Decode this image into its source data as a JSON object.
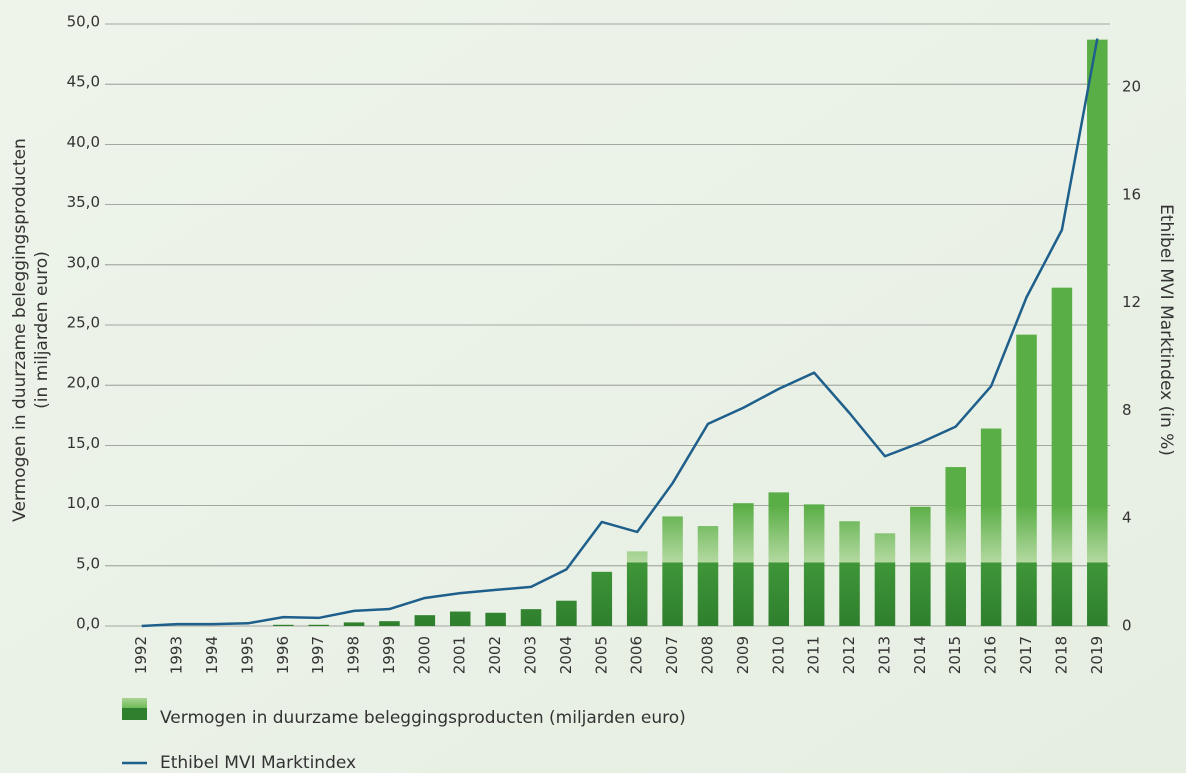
{
  "chart_data": {
    "type": "bar",
    "y_label": [
      "Vermogen in duurzame beleggingsproducten",
      "(in miljarden euro)"
    ],
    "y2_label": "Ethibel MVI Marktindex (in %)",
    "categories": [
      "1992",
      "1993",
      "1994",
      "1995",
      "1996",
      "1997",
      "1998",
      "1999",
      "2000",
      "2001",
      "2002",
      "2003",
      "2004",
      "2005",
      "2006",
      "2007",
      "2008",
      "2009",
      "2010",
      "2011",
      "2012",
      "2013",
      "2014",
      "2015",
      "2016",
      "2017",
      "2018",
      "2019"
    ],
    "series": [
      {
        "name": "Vermogen in duurzame beleggingsproducten (miljarden euro)",
        "type": "bar",
        "color": "#5aae46",
        "values": [
          0,
          0,
          0,
          0,
          0.1,
          0.1,
          0.3,
          0.4,
          0.9,
          1.2,
          1.1,
          1.4,
          2.1,
          4.5,
          6.2,
          9.1,
          8.3,
          10.2,
          11.1,
          10.1,
          8.7,
          7.7,
          9.9,
          13.2,
          16.4,
          24.2,
          28.1,
          48.7
        ]
      },
      {
        "name": "Ethibel MVI Marktindex",
        "type": "line",
        "axis": "y2",
        "color": "#1f5f8b",
        "values": [
          0,
          0.07,
          0.07,
          0.1,
          0.33,
          0.3,
          0.56,
          0.63,
          1.04,
          1.22,
          1.34,
          1.45,
          2.1,
          3.86,
          3.49,
          5.3,
          7.5,
          8.1,
          8.8,
          9.4,
          7.9,
          6.3,
          6.8,
          7.4,
          8.9,
          12.2,
          14.7,
          21.8
        ]
      }
    ],
    "ylim": [
      0,
      50
    ],
    "yticks": [
      {
        "value": 0,
        "label": "0,0"
      },
      {
        "value": 5,
        "label": "5,0"
      },
      {
        "value": 10,
        "label": "10,0"
      },
      {
        "value": 15,
        "label": "15,0"
      },
      {
        "value": 20,
        "label": "20,0"
      },
      {
        "value": 25,
        "label": "25,0"
      },
      {
        "value": 30,
        "label": "30,0"
      },
      {
        "value": 35,
        "label": "35,0"
      },
      {
        "value": 40,
        "label": "40,0"
      },
      {
        "value": 45,
        "label": "45,0"
      },
      {
        "value": 50,
        "label": "50,0"
      }
    ],
    "y2lim": [
      0,
      22.34
    ],
    "y2ticks": [
      0,
      4,
      8,
      12,
      16,
      20
    ],
    "grid": true
  }
}
